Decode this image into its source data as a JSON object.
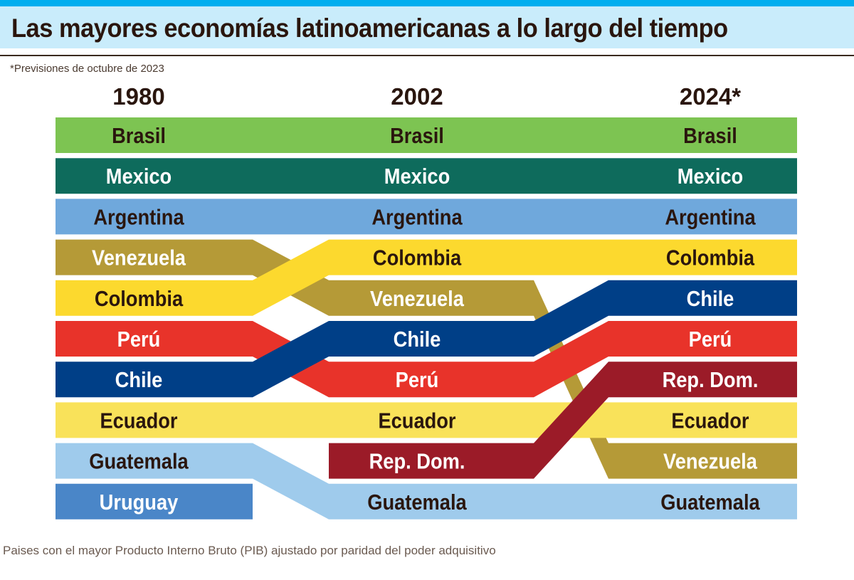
{
  "title": "Las mayores economías latinoamericanas a lo largo del tiempo",
  "note": "*Previsiones de octubre de 2023",
  "footer": "Paises con el mayor Producto Interno Bruto (PIB) ajustado por paridad del poder adquisitivo",
  "chart_data": {
    "type": "bump",
    "title": "Las mayores economías latinoamericanas a lo largo del tiempo",
    "years": [
      "1980",
      "2002",
      "2024*"
    ],
    "countries": [
      {
        "name": "Venezuela",
        "color": "#b59a37",
        "text": "#ffffff",
        "ranks": [
          4,
          5,
          9
        ]
      },
      {
        "name": "Guatemala",
        "color": "#9fcbec",
        "text": "#2a160e",
        "ranks": [
          9,
          10,
          10
        ]
      },
      {
        "name": "Perú",
        "color": "#e8332a",
        "text": "#ffffff",
        "ranks": [
          6,
          7,
          6
        ]
      },
      {
        "name": "Ecuador",
        "color": "#f9e25a",
        "text": "#2a160e",
        "ranks": [
          8,
          8,
          8
        ]
      },
      {
        "name": "Colombia",
        "color": "#fcd92e",
        "text": "#2a160e",
        "ranks": [
          5,
          4,
          4
        ]
      },
      {
        "name": "Chile",
        "color": "#003f87",
        "text": "#ffffff",
        "ranks": [
          7,
          6,
          5
        ]
      },
      {
        "name": "Rep. Dom.",
        "color": "#9b1b28",
        "text": "#ffffff",
        "ranks": [
          null,
          9,
          7
        ]
      },
      {
        "name": "Uruguay",
        "color": "#4a86c8",
        "text": "#ffffff",
        "ranks": [
          10,
          null,
          null
        ]
      },
      {
        "name": "Brasil",
        "color": "#7dc452",
        "text": "#2a160e",
        "ranks": [
          1,
          1,
          1
        ]
      },
      {
        "name": "Mexico",
        "color": "#0e6b5c",
        "text": "#ffffff",
        "ranks": [
          2,
          2,
          2
        ]
      },
      {
        "name": "Argentina",
        "color": "#6fa8dc",
        "text": "#2a160e",
        "ranks": [
          3,
          3,
          3
        ]
      }
    ]
  }
}
